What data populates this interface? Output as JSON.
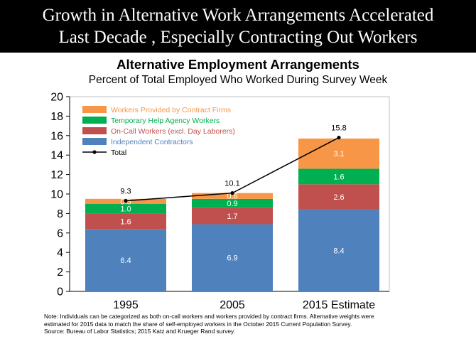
{
  "banner": {
    "line1": "Growth in Alternative  Work Arrangements Accelerated",
    "line2": "Last Decade , Especially Contracting Out Workers"
  },
  "chart_data": {
    "type": "bar",
    "stacked": true,
    "title": "Alternative Employment Arrangements",
    "subtitle": "Percent of Total Employed Who Worked During Survey Week",
    "categories": [
      "1995",
      "2005",
      "2015 Estimate"
    ],
    "ylim": [
      0,
      20
    ],
    "yticks": [
      "0",
      "2",
      "4",
      "6",
      "8",
      "10",
      "12",
      "14",
      "16",
      "18",
      "20"
    ],
    "grid": false,
    "legend_position": "top-left",
    "series": [
      {
        "name": "Independent Contractors",
        "color": "#4f81bd",
        "values": [
          6.4,
          6.9,
          8.4
        ],
        "labels": [
          "6.4",
          "6.9",
          "8.4"
        ]
      },
      {
        "name": "On-Call Workers (excl. Day Laborers)",
        "color": "#c0504d",
        "values": [
          1.6,
          1.7,
          2.6
        ],
        "labels": [
          "1.6",
          "1.7",
          "2.6"
        ]
      },
      {
        "name": "Temporary Help Agency Workers",
        "color": "#00b050",
        "values": [
          1.0,
          0.9,
          1.6
        ],
        "labels": [
          "1.0",
          "0.9",
          "1.6"
        ]
      },
      {
        "name": "Workers Provided by Contract Firms",
        "color": "#f79646",
        "values": [
          0.5,
          0.6,
          3.1
        ],
        "labels": [
          "0.5",
          "0.6",
          "3.1"
        ]
      }
    ],
    "total": {
      "name": "Total",
      "color": "#000000",
      "values": [
        9.3,
        10.1,
        15.8
      ],
      "labels": [
        "9.3",
        "10.1",
        "15.8"
      ]
    },
    "legend_order": [
      "Workers Provided by Contract Firms",
      "Temporary Help Agency Workers",
      "On-Call Workers (excl. Day Laborers)",
      "Independent Contractors",
      "Total"
    ]
  },
  "note": {
    "line1": "Note: Individuals can be categorized as both on-call workers and workers provided by contract firms. Alternative weights were",
    "line2": "estimated for 2015 data to match the share of self-employed workers in the October 2015 Current Population Survey.",
    "line3": "Source: Bureau of Labor Statistics; 2015 Katz and Krueger Rand survey."
  }
}
